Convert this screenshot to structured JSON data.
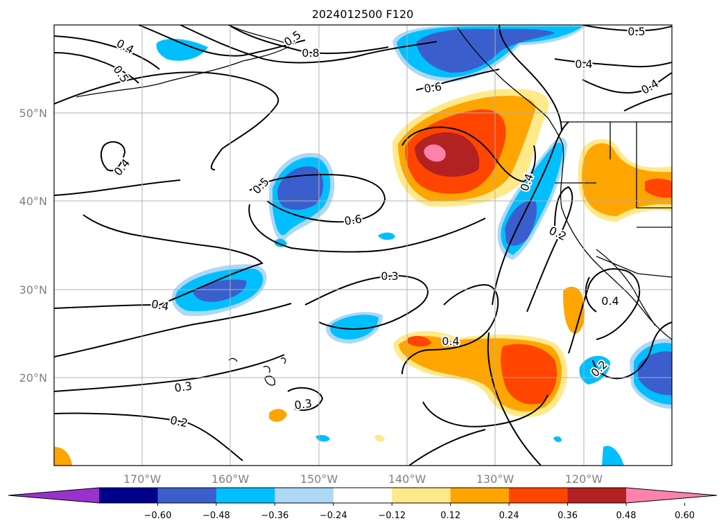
{
  "title": "2024012500 F120",
  "map": {
    "projection": "cylindrical",
    "lon_range": [
      -180,
      -110
    ],
    "lat_range": [
      10,
      60
    ],
    "grid": true,
    "lon_ticks": [
      "170°W",
      "160°W",
      "150°W",
      "140°W",
      "130°W",
      "120°W"
    ],
    "lat_ticks": [
      "20°N",
      "30°N",
      "40°N",
      "50°N"
    ],
    "contour_labels": [
      "0.4",
      "0.5",
      "0.8",
      "0.6",
      "0.5",
      "0.4",
      "0.4",
      "0.5",
      "0.4",
      "0.5",
      "0.6",
      "0.4",
      "0.2",
      "0.3",
      "0.4",
      "0.4",
      "0.4",
      "0.3",
      "0.3",
      "0.2",
      "0.2"
    ]
  },
  "colorbar": {
    "extend": "both",
    "ticks": [
      "−0.60",
      "−0.48",
      "−0.36",
      "−0.24",
      "−0.12",
      "0.12",
      "0.24",
      "0.36",
      "0.48",
      "0.60"
    ],
    "colors": [
      "#9932cc",
      "#00008b",
      "#3a5fcd",
      "#00bfff",
      "#add8f6",
      "#ffffff",
      "#ffe98a",
      "#ffa500",
      "#ff4500",
      "#b22222",
      "#ff82ab"
    ]
  }
}
